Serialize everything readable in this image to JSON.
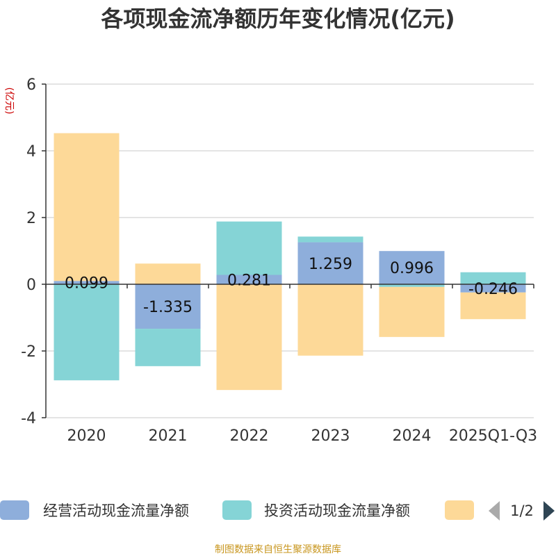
{
  "chart_data": {
    "type": "bar",
    "stacked": true,
    "title": "各项现金流净额历年变化情况(亿元)",
    "ylabel": "(亿元)",
    "xlabel": "",
    "ylim": [
      -4,
      6
    ],
    "yticks": [
      -4,
      -2,
      0,
      2,
      4,
      6
    ],
    "grid": true,
    "categories": [
      "2020",
      "2021",
      "2022",
      "2023",
      "2024",
      "2025Q1-Q3"
    ],
    "series": [
      {
        "name": "经营活动现金流量净额",
        "color": "#8eaedb",
        "values": [
          0.099,
          -1.335,
          0.281,
          1.259,
          0.996,
          -0.246
        ],
        "labels": [
          "0.099",
          "-1.335",
          "0.281",
          "1.259",
          "0.996",
          "-0.246"
        ]
      },
      {
        "name": "投资活动现金流量净额",
        "color": "#85d4d6",
        "values": [
          -2.88,
          -1.12,
          1.6,
          0.17,
          -0.08,
          0.36
        ]
      },
      {
        "name": "",
        "color": "#fdd998",
        "values": [
          4.43,
          0.62,
          -3.17,
          -2.14,
          -1.5,
          -0.8
        ]
      }
    ],
    "legend": {
      "position": "bottom",
      "page": "1/2"
    },
    "source": "制图数据来自恒生聚源数据库"
  }
}
